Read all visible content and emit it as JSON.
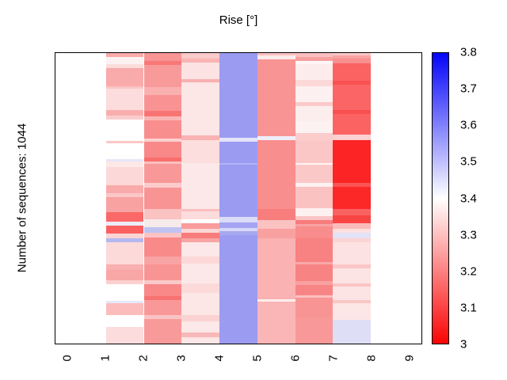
{
  "title": "Rise [°]",
  "ylabel": "Number of sequences: 1044",
  "chart_data": {
    "type": "heatmap",
    "title": "Rise [°]",
    "xlabel": "",
    "ylabel": "Number of sequences: 1044",
    "n_sequences": 1044,
    "grid": false,
    "x_ticks": [
      "0",
      "1",
      "2",
      "3",
      "4",
      "5",
      "6",
      "7",
      "8",
      "9"
    ],
    "x_range": [
      -0.333,
      9.333
    ],
    "colorbar": {
      "position": "right",
      "min": 3,
      "max": 3.8,
      "tick_labels": [
        "3.8",
        "3.7",
        "3.6",
        "3.5",
        "3.4",
        "3.3",
        "3.2",
        "3.1",
        "3"
      ],
      "colormap": "bwr",
      "top_color": "#0404fa",
      "mid_color": "#ffffff",
      "bottom_color": "#fa0404"
    },
    "columns": [
      {
        "x_span": [
          1,
          2
        ],
        "stripes": [
          [
            0.014,
            "#f9aaaa",
            3.27
          ],
          [
            0.023,
            "#fdf2f2",
            3.38
          ],
          [
            0.014,
            "#fddcdc",
            3.35
          ],
          [
            0.064,
            "#f9aaaa",
            3.27
          ],
          [
            0.009,
            "#fbc4c4",
            3.31
          ],
          [
            0.073,
            "#fcdcdc",
            3.35
          ],
          [
            0.018,
            "#f9aeae",
            3.27
          ],
          [
            0.014,
            "#fbcccc",
            3.32
          ],
          [
            0.073,
            "#ffffff",
            3.4
          ],
          [
            0.009,
            "#fbc8c8",
            3.31
          ],
          [
            0.055,
            "#ffffff",
            3.4
          ],
          [
            0.009,
            "#e6e6f8",
            3.44
          ],
          [
            0.018,
            "#fde8e8",
            3.36
          ],
          [
            0.064,
            "#fcd8d8",
            3.34
          ],
          [
            0.027,
            "#f9aaaa",
            3.27
          ],
          [
            0.014,
            "#fbc6c6",
            3.31
          ],
          [
            0.05,
            "#f8a2a2",
            3.25
          ],
          [
            0.032,
            "#fa6868",
            3.16
          ],
          [
            0.014,
            "#ececfa",
            3.43
          ],
          [
            0.027,
            "#fa6060",
            3.15
          ],
          [
            0.018,
            "#fcd4d4",
            3.33
          ],
          [
            0.014,
            "#b4b8f0",
            3.52
          ],
          [
            0.077,
            "#fcdada",
            3.35
          ],
          [
            0.018,
            "#f9b0b0",
            3.28
          ],
          [
            0.036,
            "#f9a6a6",
            3.26
          ],
          [
            0.014,
            "#fcd0d0",
            3.33
          ],
          [
            0.055,
            "#ffffff",
            3.4
          ],
          [
            0.009,
            "#e8e8f8",
            3.44
          ],
          [
            0.041,
            "#fbbcbc",
            3.3
          ],
          [
            0.041,
            "#ffffff",
            3.4
          ],
          [
            0.057,
            "#fcdcdc",
            3.35
          ]
        ]
      },
      {
        "x_span": [
          2,
          3
        ],
        "stripes": [
          [
            0.027,
            "#f99595",
            3.23
          ],
          [
            0.014,
            "#f87878",
            3.19
          ],
          [
            0.077,
            "#f99a9a",
            3.24
          ],
          [
            0.027,
            "#fbb0b0",
            3.28
          ],
          [
            0.055,
            "#f99393",
            3.23
          ],
          [
            0.018,
            "#f87474",
            3.18
          ],
          [
            0.014,
            "#fbb4b4",
            3.28
          ],
          [
            0.064,
            "#f98e8e",
            3.22
          ],
          [
            0.009,
            "#fcd0d0",
            3.33
          ],
          [
            0.055,
            "#f98888",
            3.21
          ],
          [
            0.014,
            "#f86e6e",
            3.17
          ],
          [
            0.009,
            "#fbc0c0",
            3.3
          ],
          [
            0.064,
            "#f99898",
            3.24
          ],
          [
            0.018,
            "#fccccc",
            3.32
          ],
          [
            0.073,
            "#f99494",
            3.23
          ],
          [
            0.036,
            "#fbc2c2",
            3.31
          ],
          [
            0.027,
            "#f6eaea",
            3.37
          ],
          [
            0.018,
            "#bfc3f1",
            3.5
          ],
          [
            0.018,
            "#fbc4c4",
            3.31
          ],
          [
            0.064,
            "#f98a8a",
            3.21
          ],
          [
            0.027,
            "#f9a4a4",
            3.26
          ],
          [
            0.055,
            "#f99494",
            3.23
          ],
          [
            0.014,
            "#fbc8c8",
            3.31
          ],
          [
            0.041,
            "#f98888",
            3.21
          ],
          [
            0.014,
            "#f87272",
            3.18
          ],
          [
            0.05,
            "#f99898",
            3.24
          ],
          [
            0.014,
            "#fbc4c4",
            3.31
          ],
          [
            0.085,
            "#f99a9a",
            3.24
          ]
        ]
      },
      {
        "x_span": [
          3,
          4
        ],
        "stripes": [
          [
            0.018,
            "#fbcaca",
            3.32
          ],
          [
            0.014,
            "#fab4b4",
            3.28
          ],
          [
            0.059,
            "#fce2e2",
            3.36
          ],
          [
            0.009,
            "#f9b0b0",
            3.28
          ],
          [
            0.182,
            "#fce6e6",
            3.36
          ],
          [
            0.018,
            "#f9b2b2",
            3.28
          ],
          [
            0.077,
            "#fcdede",
            3.35
          ],
          [
            0.159,
            "#fce8e8",
            3.37
          ],
          [
            0.009,
            "#fabebe",
            3.3
          ],
          [
            0.027,
            "#fcdcdc",
            3.35
          ],
          [
            0.014,
            "#ffffff",
            3.4
          ],
          [
            0.018,
            "#f89c9c",
            3.24
          ],
          [
            0.014,
            "#fcd6d6",
            3.34
          ],
          [
            0.018,
            "#f67c7c",
            3.19
          ],
          [
            0.014,
            "#f9a4a4",
            3.26
          ],
          [
            0.05,
            "#fce8e8",
            3.37
          ],
          [
            0.023,
            "#fcd8d8",
            3.34
          ],
          [
            0.068,
            "#fce8e8",
            3.37
          ],
          [
            0.032,
            "#fcdada",
            3.35
          ],
          [
            0.077,
            "#fce6e6",
            3.36
          ],
          [
            0.023,
            "#fbd2d2",
            3.33
          ],
          [
            0.036,
            "#fce8e8",
            3.37
          ],
          [
            0.018,
            "#f9b8b8",
            3.29
          ],
          [
            0.021,
            "#fce6e6",
            3.36
          ]
        ]
      },
      {
        "x_span": [
          4,
          5
        ],
        "stripes": [
          [
            0.291,
            "#9b9bf2",
            3.56
          ],
          [
            0.014,
            "#e4e4fa",
            3.44
          ],
          [
            0.073,
            "#9b9bf2",
            3.56
          ],
          [
            0.005,
            "#b4b4f4",
            3.51
          ],
          [
            0.182,
            "#9b9bf2",
            3.56
          ],
          [
            0.018,
            "#dcdcf8",
            3.45
          ],
          [
            0.018,
            "#a4a4f2",
            3.54
          ],
          [
            0.011,
            "#d8d8f8",
            3.46
          ],
          [
            0.016,
            "#a8a8f0",
            3.53
          ],
          [
            0.372,
            "#9b9bf2",
            3.56
          ]
        ]
      },
      {
        "x_span": [
          5,
          6
        ],
        "stripes": [
          [
            0.009,
            "#fbc0c0",
            3.3
          ],
          [
            0.014,
            "#fdeaea",
            3.37
          ],
          [
            0.264,
            "#f99494",
            3.23
          ],
          [
            0.014,
            "#f0eefa",
            3.42
          ],
          [
            0.237,
            "#f98e8e",
            3.22
          ],
          [
            0.036,
            "#f87e7e",
            3.19
          ],
          [
            0.032,
            "#fbc2c2",
            3.31
          ],
          [
            0.032,
            "#f9a0a0",
            3.25
          ],
          [
            0.209,
            "#fab2b2",
            3.28
          ],
          [
            0.009,
            "#fdeeee",
            3.37
          ],
          [
            0.144,
            "#fab6b6",
            3.29
          ]
        ]
      },
      {
        "x_span": [
          6,
          7
        ],
        "stripes": [
          [
            0.014,
            "#fbc0c0",
            3.3
          ],
          [
            0.014,
            "#f9a0a0",
            3.25
          ],
          [
            0.009,
            "#fef6f6",
            3.39
          ],
          [
            0.055,
            "#fdecec",
            3.37
          ],
          [
            0.023,
            "#fcd8d8",
            3.34
          ],
          [
            0.055,
            "#fdf0f0",
            3.38
          ],
          [
            0.014,
            "#fbcaca",
            3.32
          ],
          [
            0.05,
            "#fdeeee",
            3.37
          ],
          [
            0.041,
            "#fdf2f2",
            3.38
          ],
          [
            0.027,
            "#fbcccc",
            3.32
          ],
          [
            0.077,
            "#fbc6c6",
            3.31
          ],
          [
            0.005,
            "#fef4f4",
            3.38
          ],
          [
            0.064,
            "#fbc8c8",
            3.31
          ],
          [
            0.014,
            "#fdf0f0",
            3.38
          ],
          [
            0.073,
            "#fbc2c2",
            3.31
          ],
          [
            0.027,
            "#fdf0f0",
            3.38
          ],
          [
            0.015,
            "#fbc4c4",
            3.31
          ],
          [
            0.012,
            "#f87c7c",
            3.19
          ],
          [
            0.009,
            "#f9a2a2",
            3.25
          ],
          [
            0.041,
            "#f98c8c",
            3.22
          ],
          [
            0.082,
            "#f88181",
            3.2
          ],
          [
            0.009,
            "#f9a8a8",
            3.26
          ],
          [
            0.055,
            "#f88383",
            3.2
          ],
          [
            0.014,
            "#f9a0a0",
            3.25
          ],
          [
            0.036,
            "#f88585",
            3.21
          ],
          [
            0.009,
            "#fbc0c0",
            3.3
          ],
          [
            0.068,
            "#f99494",
            3.23
          ],
          [
            0.089,
            "#f99898",
            3.24
          ]
        ]
      },
      {
        "x_span": [
          7,
          8
        ],
        "stripes": [
          [
            0.009,
            "#fbc8c8",
            3.31
          ],
          [
            0.011,
            "#f9a2a2",
            3.25
          ],
          [
            0.016,
            "#f98f8f",
            3.22
          ],
          [
            0.059,
            "#fb6262",
            3.15
          ],
          [
            0.015,
            "#f95252",
            3.13
          ],
          [
            0.085,
            "#fb6565",
            3.16
          ],
          [
            0.015,
            "#f95050",
            3.13
          ],
          [
            0.071,
            "#fb6363",
            3.16
          ],
          [
            0.018,
            "#fcd0d0",
            3.33
          ],
          [
            0.146,
            "#fc2424",
            3.06
          ],
          [
            0.015,
            "#fa5454",
            3.13
          ],
          [
            0.076,
            "#fc2828",
            3.06
          ],
          [
            0.023,
            "#fa6262",
            3.15
          ],
          [
            0.027,
            "#f94444",
            3.11
          ],
          [
            0.018,
            "#fbbaba",
            3.29
          ],
          [
            0.014,
            "#fce0e0",
            3.35
          ],
          [
            0.018,
            "#e2e2f6",
            3.45
          ],
          [
            0.014,
            "#fcd4d4",
            3.33
          ],
          [
            0.077,
            "#fce2e2",
            3.36
          ],
          [
            0.014,
            "#fbc6c6",
            3.31
          ],
          [
            0.05,
            "#fce4e4",
            3.36
          ],
          [
            0.011,
            "#fbc4c4",
            3.31
          ],
          [
            0.048,
            "#fce4e4",
            3.36
          ],
          [
            0.011,
            "#fbc6c6",
            3.31
          ],
          [
            0.057,
            "#fce6e6",
            3.36
          ],
          [
            0.08,
            "#dedef6",
            3.45
          ]
        ]
      }
    ]
  }
}
